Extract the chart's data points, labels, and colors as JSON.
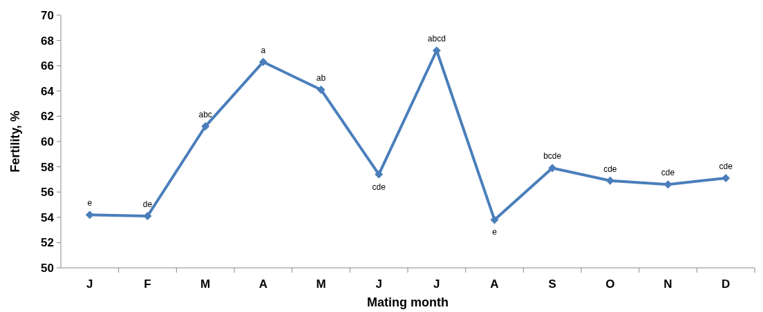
{
  "chart_data": {
    "type": "line",
    "xlabel": "Mating month",
    "ylabel": "Fertility, %",
    "categories": [
      "J",
      "F",
      "M",
      "A",
      "M",
      "J",
      "J",
      "A",
      "S",
      "O",
      "N",
      "D"
    ],
    "series": [
      {
        "color": "#4a7ebb",
        "values": [
          54.2,
          54.1,
          61.2,
          66.3,
          64.1,
          57.4,
          67.2,
          53.8,
          57.9,
          56.9,
          56.6,
          57.1
        ],
        "value_labels": [
          "e",
          "de",
          "abc",
          "a",
          "ab",
          "cde",
          "abcd",
          "e",
          "bcde",
          "cde",
          "cde",
          "cde"
        ]
      }
    ],
    "ylim": [
      50,
      70
    ],
    "yticks": [
      50,
      52,
      54,
      56,
      58,
      60,
      62,
      64,
      66,
      68,
      70
    ],
    "grid": false,
    "marker": "diamond",
    "line_style": "solid"
  }
}
